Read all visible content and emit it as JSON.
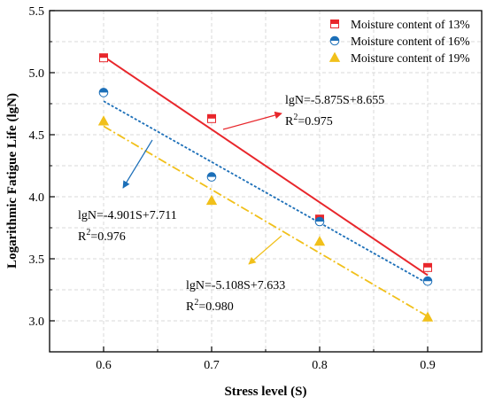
{
  "chart_data": {
    "type": "scatter",
    "title": "",
    "xlabel": "Stress level (S)",
    "ylabel": "Logarithmic Fatigue Life (lgN)",
    "xlim": [
      0.55,
      0.95
    ],
    "ylim": [
      2.75,
      5.5
    ],
    "x_ticks": [
      "0.6",
      "0.7",
      "0.8",
      "0.9"
    ],
    "y_ticks": [
      "3.0",
      "3.5",
      "4.0",
      "4.5",
      "5.0",
      "5.5"
    ],
    "grid": true,
    "legend_position": "top-right",
    "series": [
      {
        "name": "Moisture content of 13%",
        "marker": "square-half",
        "color": "#e8262b",
        "line_style": "solid",
        "points": [
          {
            "x": 0.6,
            "y": 5.12
          },
          {
            "x": 0.7,
            "y": 4.63
          },
          {
            "x": 0.8,
            "y": 3.82
          },
          {
            "x": 0.9,
            "y": 3.43
          }
        ],
        "fit": {
          "slope": -5.875,
          "intercept": 8.655,
          "equation": "lgN=-5.875S+8.655",
          "r2_base": "R",
          "r2_sup": "2",
          "r2_value": "=0.975"
        }
      },
      {
        "name": "Moisture content of 16%",
        "marker": "circle-half",
        "color": "#1c6fb8",
        "line_style": "dotted",
        "points": [
          {
            "x": 0.6,
            "y": 4.84
          },
          {
            "x": 0.7,
            "y": 4.16
          },
          {
            "x": 0.8,
            "y": 3.8
          },
          {
            "x": 0.9,
            "y": 3.32
          }
        ],
        "fit": {
          "slope": -4.901,
          "intercept": 7.711,
          "equation": "lgN=-4.901S+7.711",
          "r2_base": "R",
          "r2_sup": "2",
          "r2_value": "=0.976"
        }
      },
      {
        "name": "Moisture content of 19%",
        "marker": "triangle",
        "color": "#f1c01a",
        "line_style": "dashdot",
        "points": [
          {
            "x": 0.6,
            "y": 4.61
          },
          {
            "x": 0.7,
            "y": 3.97
          },
          {
            "x": 0.8,
            "y": 3.64
          },
          {
            "x": 0.9,
            "y": 3.03
          }
        ],
        "fit": {
          "slope": -5.108,
          "intercept": 7.633,
          "equation": "lgN=-5.108S+7.633",
          "r2_base": "R",
          "r2_sup": "2",
          "r2_value": "=0.980"
        }
      }
    ]
  }
}
